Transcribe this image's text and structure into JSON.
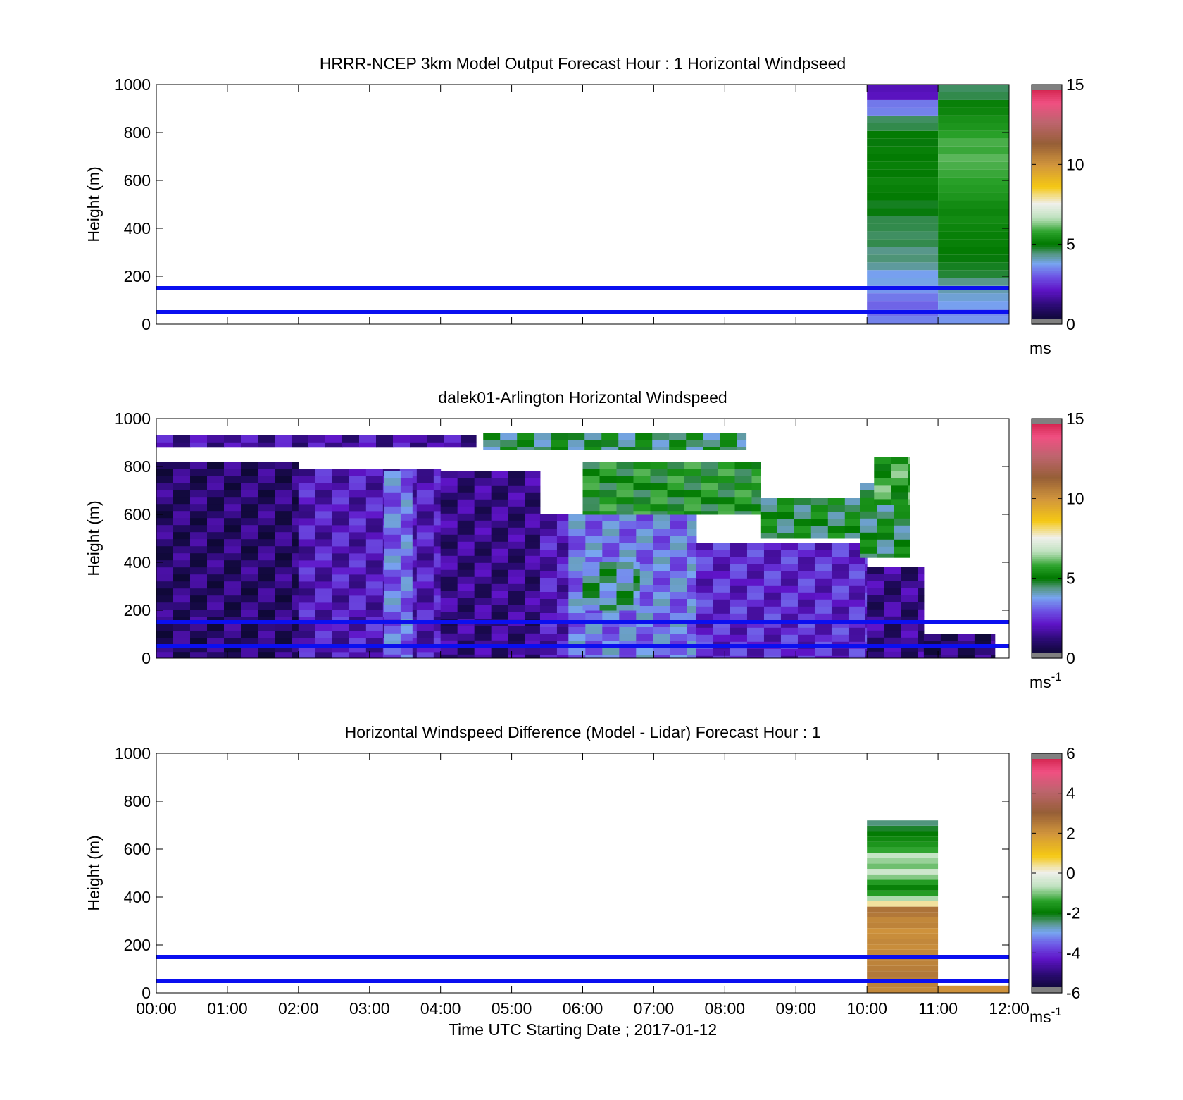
{
  "chart_data": [
    {
      "type": "heatmap",
      "title": "HRRR-NCEP 3km Model Output   Forecast Hour : 1 Horizontal Windpseed",
      "ylabel": "Height (m)",
      "xlabel": "",
      "ylim": [
        0,
        1000
      ],
      "yticks": [
        "0",
        "200",
        "400",
        "600",
        "800",
        "1000"
      ],
      "xlim_hours": [
        0,
        12
      ],
      "xtick_labels_shown": false,
      "reference_lines_m": [
        50,
        150
      ],
      "colorbar": {
        "min": 0,
        "max": 15,
        "ticks": [
          "0",
          "5",
          "10",
          "15"
        ],
        "unit": "ms",
        "unit_superscript": ""
      },
      "columns": [
        {
          "x_start_hour": 10,
          "x_end_hour": 11,
          "values": [
            3.4,
            3.2,
            3.1,
            3.3,
            3.6,
            3.8,
            3.7,
            4.2,
            4.4,
            4.3,
            4.6,
            4.5,
            4.6,
            4.6,
            4.9,
            4.8,
            5.0,
            5.1,
            5.2,
            5.0,
            5.1,
            5.0,
            5.1,
            4.9,
            5.0,
            4.6,
            4.5,
            3.4,
            3.3,
            2.0,
            1.9
          ]
        },
        {
          "x_start_hour": 11,
          "x_end_hour": 12,
          "values": [
            3.6,
            3.5,
            3.7,
            3.9,
            4.1,
            4.3,
            4.7,
            4.8,
            4.9,
            5.0,
            5.1,
            5.1,
            5.2,
            5.3,
            5.2,
            5.3,
            5.5,
            5.6,
            5.7,
            5.8,
            5.9,
            6.0,
            5.8,
            5.9,
            5.7,
            5.5,
            5.4,
            5.2,
            5.1,
            4.6,
            4.5
          ]
        }
      ]
    },
    {
      "type": "heatmap",
      "title": "dalek01-Arlington  Horizontal Windspeed",
      "ylabel": "Height (m)",
      "xlabel": "",
      "ylim": [
        0,
        1000
      ],
      "yticks": [
        "0",
        "200",
        "400",
        "600",
        "800",
        "1000"
      ],
      "xlim_hours": [
        0,
        12
      ],
      "xtick_labels_shown": false,
      "reference_lines_m": [
        50,
        150
      ],
      "colorbar": {
        "min": 0,
        "max": 15,
        "ticks": [
          "0",
          "5",
          "10",
          "15"
        ],
        "unit": "ms",
        "unit_superscript": "-1"
      },
      "regions": [
        {
          "x_start_hour": 0.0,
          "x_end_hour": 2.0,
          "y_min_m": 0,
          "y_max_m": 820,
          "speed_ms": 1.0
        },
        {
          "x_start_hour": 2.0,
          "x_end_hour": 4.0,
          "y_min_m": 0,
          "y_max_m": 790,
          "speed_ms": 2.0
        },
        {
          "x_start_hour": 3.2,
          "x_end_hour": 3.6,
          "y_min_m": 0,
          "y_max_m": 780,
          "speed_ms": 3.2
        },
        {
          "x_start_hour": 4.0,
          "x_end_hour": 5.4,
          "y_min_m": 0,
          "y_max_m": 780,
          "speed_ms": 1.3
        },
        {
          "x_start_hour": 5.4,
          "x_end_hour": 5.8,
          "y_min_m": 0,
          "y_max_m": 600,
          "speed_ms": 2.0
        },
        {
          "x_start_hour": 5.8,
          "x_end_hour": 7.6,
          "y_min_m": 0,
          "y_max_m": 600,
          "speed_ms": 3.3
        },
        {
          "x_start_hour": 6.0,
          "x_end_hour": 6.8,
          "y_min_m": 200,
          "y_max_m": 400,
          "speed_ms": 4.2
        },
        {
          "x_start_hour": 7.6,
          "x_end_hour": 10.0,
          "y_min_m": 0,
          "y_max_m": 480,
          "speed_ms": 2.3
        },
        {
          "x_start_hour": 10.0,
          "x_end_hour": 10.8,
          "y_min_m": 0,
          "y_max_m": 380,
          "speed_ms": 1.3
        },
        {
          "x_start_hour": 10.8,
          "x_end_hour": 11.8,
          "y_min_m": 0,
          "y_max_m": 100,
          "speed_ms": 1.0
        },
        {
          "x_start_hour": 6.0,
          "x_end_hour": 8.5,
          "y_min_m": 600,
          "y_max_m": 820,
          "speed_ms": 5.2
        },
        {
          "x_start_hour": 8.5,
          "x_end_hour": 9.9,
          "y_min_m": 500,
          "y_max_m": 670,
          "speed_ms": 4.8
        },
        {
          "x_start_hour": 9.9,
          "x_end_hour": 10.6,
          "y_min_m": 420,
          "y_max_m": 730,
          "speed_ms": 4.7
        },
        {
          "x_start_hour": 10.1,
          "x_end_hour": 10.6,
          "y_min_m": 640,
          "y_max_m": 840,
          "speed_ms": 5.6
        },
        {
          "x_start_hour": 4.6,
          "x_end_hour": 8.3,
          "y_min_m": 870,
          "y_max_m": 940,
          "speed_ms": 4.6
        },
        {
          "x_start_hour": 0.0,
          "x_end_hour": 4.5,
          "y_min_m": 880,
          "y_max_m": 930,
          "speed_ms": 1.7
        }
      ]
    },
    {
      "type": "heatmap",
      "title": "Horizontal Windspeed Difference (Model - Lidar) Forecast Hour : 1",
      "ylabel": "Height (m)",
      "xlabel": "Time UTC  Starting Date ; 2017-01-12",
      "ylim": [
        0,
        1000
      ],
      "yticks": [
        "0",
        "200",
        "400",
        "600",
        "800",
        "1000"
      ],
      "xlim_hours": [
        0,
        12
      ],
      "xticks": [
        "00:00",
        "01:00",
        "02:00",
        "03:00",
        "04:00",
        "05:00",
        "06:00",
        "07:00",
        "08:00",
        "09:00",
        "10:00",
        "11:00",
        "12:00"
      ],
      "reference_lines_m": [
        50,
        150
      ],
      "colorbar": {
        "min": -6,
        "max": 6,
        "ticks": [
          "-6",
          "-4",
          "-2",
          "0",
          "2",
          "4",
          "6"
        ],
        "unit": "ms",
        "unit_superscript": "-1"
      },
      "columns": [
        {
          "x_start_hour": 10,
          "x_end_hour": 11,
          "values": [
            2.2,
            2.3,
            2.4,
            2.5,
            2.4,
            2.3,
            2.3,
            2.2,
            2.1,
            2.2,
            2.1,
            2.0,
            2.3,
            2.2,
            2.5,
            2.6,
            0.3,
            -0.8,
            -1.5,
            -1.9,
            -1.5,
            -1.0,
            -0.5,
            -1.1,
            -0.9,
            -0.6,
            -1.4,
            -1.6,
            -1.8,
            -2.0,
            -2.2,
            -2.5
          ]
        },
        {
          "x_start_hour": 11,
          "x_end_hour": 12,
          "values": [
            2.0
          ]
        }
      ]
    }
  ]
}
